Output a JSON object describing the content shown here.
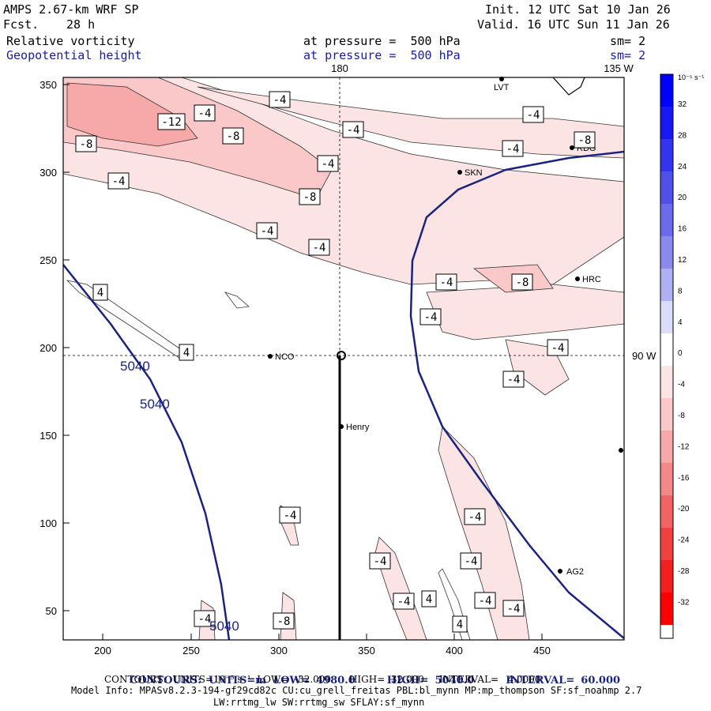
{
  "header": {
    "model": "AMPS 2.67-km WRF SP",
    "fcst_label": "Fcst.",
    "fcst_value": "28 h",
    "init": "Init. 12 UTC Sat 10 Jan 26",
    "valid": "Valid. 16 UTC Sun 11 Jan 26",
    "field1": "Relative vorticity",
    "field2": "Geopotential height",
    "level1": "at pressure =  500 hPa",
    "level2": "at pressure =  500 hPa",
    "sm1": "sm= 2",
    "sm2": "sm= 2"
  },
  "map": {
    "lon_labels": [
      "180",
      "135 W",
      "90 W"
    ],
    "stations": [
      "LVT",
      "SKN",
      "RDG",
      "HRC",
      "NCO",
      "Henry",
      "AG2"
    ],
    "x_ticks": [
      "200",
      "250",
      "300",
      "350",
      "400",
      "450"
    ],
    "y_ticks": [
      "350",
      "300",
      "250",
      "200",
      "150",
      "100",
      "50"
    ],
    "vort_labels": [
      "-4",
      "-4",
      "-4",
      "-4",
      "-4",
      "-8",
      "-12",
      "-8",
      "-8",
      "-4",
      "-4",
      "-8",
      "-4",
      "-4",
      "-8",
      "-4",
      "-4",
      "-4",
      "-4",
      "-4",
      "-4",
      "-4",
      "-4",
      "-4",
      "-4",
      "4",
      "4",
      "4",
      "4",
      "-4",
      "-4",
      "-8"
    ],
    "height_labels": [
      "5040",
      "5040",
      "5040"
    ]
  },
  "colorbar": {
    "units": "10⁻⁵ s⁻¹",
    "labels": [
      "32",
      "28",
      "24",
      "20",
      "16",
      "12",
      "8",
      "4",
      "0",
      "-4",
      "-8",
      "-12",
      "-16",
      "-20",
      "-24",
      "-28",
      "-32"
    ],
    "colors": [
      "#0000ff",
      "#1818f4",
      "#3434ee",
      "#4f4fea",
      "#6b6bec",
      "#8a8aee",
      "#b0b0f4",
      "#dcdcfa",
      "#ffffff",
      "#fde4e4",
      "#fac8c8",
      "#f7a8a8",
      "#f48888",
      "#f26464",
      "#f04040",
      "#f42020",
      "#ff0000"
    ]
  },
  "footer": {
    "line1_label": "CONTOURS:  UNITS=m  LOW=",
    "line1_low": "4980.0",
    "line1_high_label": "HIGH=",
    "line1_high": "5040.0",
    "line1_int_label": "INTERVAL=",
    "line1_int": "60.000",
    "line2": "CONTOURS:  UNITS=10⁻⁵ s⁻¹  LOW=  -32.000      HIGH=  32.000     INTERVAL=   4.0000",
    "line3": "Model Info: MPASv8.2.3-194-gf29cd82c CU:cu_grell_freitas PBL:bl_mynn MP:mp_thompson SF:sf_noahmp 2.7",
    "line4": "LW:rrtmg_lw SW:rrtmg_sw SFLAY:sf_mynn"
  }
}
